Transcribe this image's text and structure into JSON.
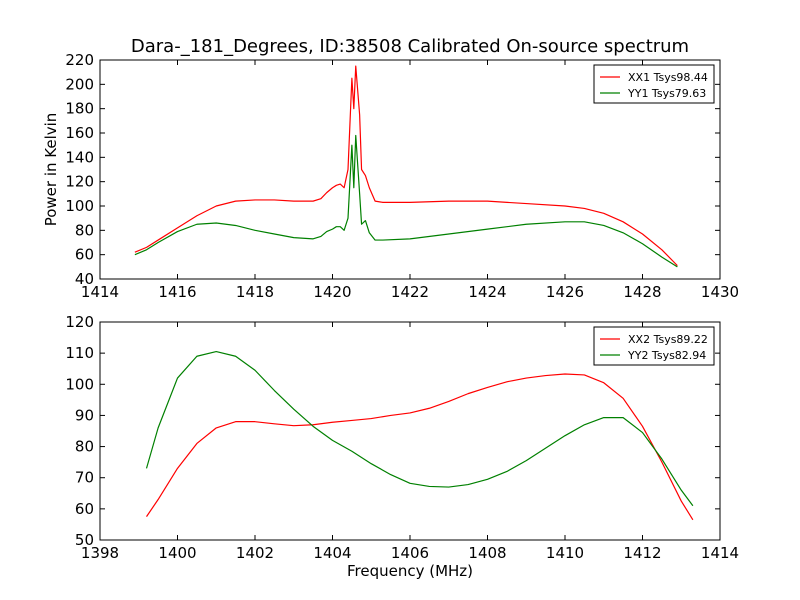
{
  "title": "Dara-_181_Degrees, ID:38508 Calibrated On-source spectrum",
  "chart_data": [
    {
      "type": "line",
      "ylabel": "Power in Kelvin",
      "xlabel": "",
      "xlim": [
        1414,
        1430
      ],
      "ylim": [
        40,
        220
      ],
      "xticks": [
        1414,
        1416,
        1418,
        1420,
        1422,
        1424,
        1426,
        1428,
        1430
      ],
      "yticks": [
        40,
        60,
        80,
        100,
        120,
        140,
        160,
        180,
        200,
        220
      ],
      "legend_position": "top-right",
      "series": [
        {
          "name": "XX1 Tsys98.44",
          "color": "#ff0000",
          "points": [
            [
              1414.9,
              62
            ],
            [
              1415.2,
              66
            ],
            [
              1415.5,
              72
            ],
            [
              1416.0,
              82
            ],
            [
              1416.5,
              92
            ],
            [
              1417.0,
              100
            ],
            [
              1417.5,
              104
            ],
            [
              1418.0,
              105
            ],
            [
              1418.5,
              105
            ],
            [
              1419.0,
              104
            ],
            [
              1419.5,
              104
            ],
            [
              1419.7,
              106
            ],
            [
              1419.85,
              111
            ],
            [
              1420.0,
              115
            ],
            [
              1420.1,
              117
            ],
            [
              1420.2,
              118
            ],
            [
              1420.3,
              115
            ],
            [
              1420.4,
              130
            ],
            [
              1420.5,
              205
            ],
            [
              1420.55,
              180
            ],
            [
              1420.6,
              215
            ],
            [
              1420.7,
              175
            ],
            [
              1420.75,
              130
            ],
            [
              1420.85,
              125
            ],
            [
              1420.95,
              115
            ],
            [
              1421.1,
              104
            ],
            [
              1421.3,
              103
            ],
            [
              1422.0,
              103
            ],
            [
              1423.0,
              104
            ],
            [
              1424.0,
              104
            ],
            [
              1425.0,
              102
            ],
            [
              1426.0,
              100
            ],
            [
              1426.5,
              98
            ],
            [
              1427.0,
              94
            ],
            [
              1427.5,
              87
            ],
            [
              1428.0,
              77
            ],
            [
              1428.5,
              64
            ],
            [
              1428.9,
              51
            ]
          ]
        },
        {
          "name": "YY1 Tsys79.63",
          "color": "#008000",
          "points": [
            [
              1414.9,
              60
            ],
            [
              1415.2,
              64
            ],
            [
              1415.5,
              70
            ],
            [
              1416.0,
              79
            ],
            [
              1416.5,
              85
            ],
            [
              1417.0,
              86
            ],
            [
              1417.5,
              84
            ],
            [
              1418.0,
              80
            ],
            [
              1418.5,
              77
            ],
            [
              1419.0,
              74
            ],
            [
              1419.5,
              73
            ],
            [
              1419.7,
              75
            ],
            [
              1419.85,
              79
            ],
            [
              1420.0,
              81
            ],
            [
              1420.1,
              83
            ],
            [
              1420.2,
              83
            ],
            [
              1420.3,
              80
            ],
            [
              1420.4,
              90
            ],
            [
              1420.5,
              150
            ],
            [
              1420.55,
              115
            ],
            [
              1420.6,
              158
            ],
            [
              1420.7,
              110
            ],
            [
              1420.75,
              85
            ],
            [
              1420.85,
              88
            ],
            [
              1420.95,
              78
            ],
            [
              1421.1,
              72
            ],
            [
              1421.3,
              72
            ],
            [
              1422.0,
              73
            ],
            [
              1423.0,
              77
            ],
            [
              1424.0,
              81
            ],
            [
              1425.0,
              85
            ],
            [
              1426.0,
              87
            ],
            [
              1426.5,
              87
            ],
            [
              1427.0,
              84
            ],
            [
              1427.5,
              78
            ],
            [
              1428.0,
              69
            ],
            [
              1428.5,
              58
            ],
            [
              1428.9,
              50
            ]
          ]
        }
      ]
    },
    {
      "type": "line",
      "ylabel": "",
      "xlabel": "Frequency (MHz)",
      "xlim": [
        1398,
        1414
      ],
      "ylim": [
        50,
        120
      ],
      "xticks": [
        1398,
        1400,
        1402,
        1404,
        1406,
        1408,
        1410,
        1412,
        1414
      ],
      "yticks": [
        50,
        60,
        70,
        80,
        90,
        100,
        110,
        120
      ],
      "legend_position": "top-right",
      "series": [
        {
          "name": "XX2 Tsys89.22",
          "color": "#ff0000",
          "points": [
            [
              1399.2,
              57.5
            ],
            [
              1399.5,
              63
            ],
            [
              1400.0,
              73
            ],
            [
              1400.5,
              81
            ],
            [
              1401.0,
              86
            ],
            [
              1401.5,
              88
            ],
            [
              1402.0,
              88
            ],
            [
              1402.5,
              87.3
            ],
            [
              1403.0,
              86.7
            ],
            [
              1403.5,
              87
            ],
            [
              1404.0,
              87.8
            ],
            [
              1404.5,
              88.4
            ],
            [
              1405.0,
              89
            ],
            [
              1405.5,
              90
            ],
            [
              1406.0,
              90.8
            ],
            [
              1406.5,
              92.3
            ],
            [
              1407.0,
              94.5
            ],
            [
              1407.5,
              97
            ],
            [
              1408.0,
              99
            ],
            [
              1408.5,
              100.8
            ],
            [
              1409.0,
              102
            ],
            [
              1409.5,
              102.8
            ],
            [
              1410.0,
              103.3
            ],
            [
              1410.5,
              103
            ],
            [
              1411.0,
              100.5
            ],
            [
              1411.5,
              95.5
            ],
            [
              1412.0,
              86.5
            ],
            [
              1412.5,
              75
            ],
            [
              1413.0,
              62.5
            ],
            [
              1413.3,
              56.5
            ]
          ]
        },
        {
          "name": "YY2 Tsys82.94",
          "color": "#008000",
          "points": [
            [
              1399.2,
              73
            ],
            [
              1399.5,
              86
            ],
            [
              1400.0,
              102
            ],
            [
              1400.5,
              109
            ],
            [
              1401.0,
              110.5
            ],
            [
              1401.5,
              109
            ],
            [
              1402.0,
              104.5
            ],
            [
              1402.5,
              98
            ],
            [
              1403.0,
              92
            ],
            [
              1403.5,
              86.5
            ],
            [
              1404.0,
              82
            ],
            [
              1404.5,
              78.5
            ],
            [
              1405.0,
              74.5
            ],
            [
              1405.5,
              71
            ],
            [
              1406.0,
              68.2
            ],
            [
              1406.5,
              67.2
            ],
            [
              1407.0,
              67
            ],
            [
              1407.5,
              67.8
            ],
            [
              1408.0,
              69.5
            ],
            [
              1408.5,
              72
            ],
            [
              1409.0,
              75.5
            ],
            [
              1409.5,
              79.5
            ],
            [
              1410.0,
              83.5
            ],
            [
              1410.5,
              87
            ],
            [
              1411.0,
              89.3
            ],
            [
              1411.5,
              89.3
            ],
            [
              1412.0,
              84.5
            ],
            [
              1412.5,
              76
            ],
            [
              1413.0,
              66
            ],
            [
              1413.3,
              61
            ]
          ]
        }
      ]
    }
  ]
}
